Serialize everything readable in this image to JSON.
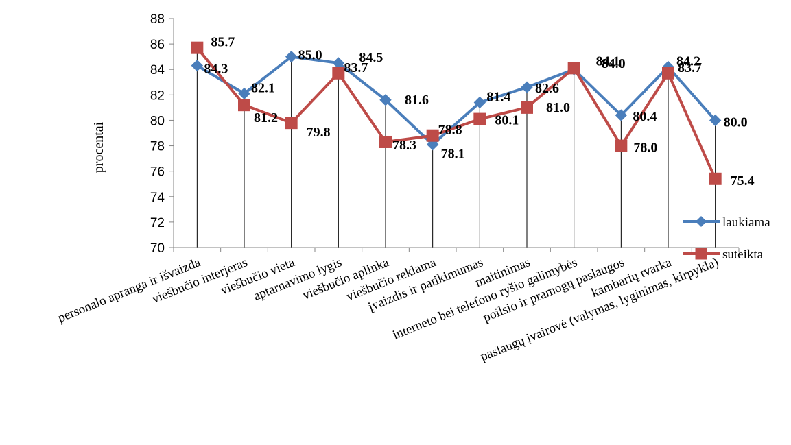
{
  "chart_data": {
    "type": "line",
    "ylabel": "procentai",
    "xlabel": "",
    "ylim": [
      70,
      88
    ],
    "y_ticks": [
      70,
      72,
      74,
      76,
      78,
      80,
      82,
      84,
      86,
      88
    ],
    "grid": "vertical drop lines at each category",
    "legend_position": "right",
    "categories": [
      "personalo apranga ir išvaizda",
      "viešbučio interjeras",
      "viešbučio vieta",
      "aptarnavimo lygis",
      "viešbučio aplinka",
      "viešbučio reklama",
      "įvaizdis ir patikimumas",
      "maitinimas",
      "interneto bei telefono ryšio galimybės",
      "poilsio ir pramogų paslaugos",
      "kambarių tvarka",
      "paslaugų įvairovė (valymas, lyginimas, kirpykla)"
    ],
    "series": [
      {
        "name": "laukiama",
        "color": "#4a7ebb",
        "marker": "diamond",
        "values": [
          84.3,
          82.1,
          85.0,
          84.5,
          81.6,
          78.1,
          81.4,
          82.6,
          84.0,
          80.4,
          84.2,
          80.0
        ],
        "labels": [
          "84.3",
          "82.1",
          "85.0",
          "84.5",
          "81.6",
          "78.1",
          "81.4",
          "82.6",
          "84.0",
          "80.4",
          "84.2",
          "80.0"
        ]
      },
      {
        "name": "suteikta",
        "color": "#be4b48",
        "marker": "square",
        "values": [
          85.7,
          81.2,
          79.8,
          83.7,
          78.3,
          78.8,
          80.1,
          81.0,
          84.1,
          78.0,
          83.7,
          75.4
        ],
        "labels": [
          "85.7",
          "81.2",
          "79.8",
          "83.7",
          "78.3",
          "78.8",
          "80.1",
          "81.0",
          "84.1",
          "78.0",
          "83.7",
          "75.4"
        ]
      }
    ]
  }
}
